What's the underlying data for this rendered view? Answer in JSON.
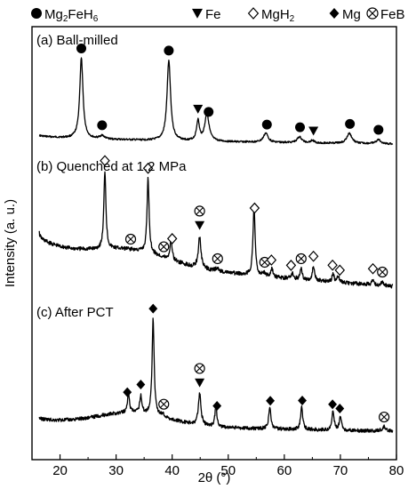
{
  "chart_data": {
    "type": "line",
    "xlabel": "2θ (°)",
    "ylabel": "Intensity (a. u.)",
    "xlim": [
      15,
      80
    ],
    "xticks": [
      20,
      30,
      40,
      50,
      60,
      70,
      80
    ],
    "legend_placement": "top",
    "legend": [
      {
        "symbol": "circle-filled",
        "label": "Mg",
        "sub1": "2",
        "mid": "FeH",
        "sub2": "6"
      },
      {
        "symbol": "triangle-down-filled",
        "label": "Fe"
      },
      {
        "symbol": "diamond-open",
        "label": "MgH",
        "sub1": "2"
      },
      {
        "symbol": "diamond-filled",
        "label": "Mg"
      },
      {
        "symbol": "circle-cross",
        "label": "FeB"
      }
    ],
    "series": [
      {
        "name": "(a) Ball-milled",
        "peaks": [
          {
            "x": 23.8,
            "h": 0.96,
            "w": 0.35
          },
          {
            "x": 27.5,
            "h": 0.04,
            "w": 0.5
          },
          {
            "x": 39.4,
            "h": 0.96,
            "w": 0.38
          },
          {
            "x": 44.6,
            "h": 0.24,
            "w": 0.3
          },
          {
            "x": 46.2,
            "h": 0.33,
            "w": 0.45
          },
          {
            "x": 56.7,
            "h": 0.11,
            "w": 0.5
          },
          {
            "x": 62.7,
            "h": 0.07,
            "w": 0.5
          },
          {
            "x": 65.0,
            "h": 0.03,
            "w": 0.4
          },
          {
            "x": 71.6,
            "h": 0.12,
            "w": 0.55
          },
          {
            "x": 76.8,
            "h": 0.05,
            "w": 0.5
          }
        ],
        "markers": [
          {
            "x": 23.8,
            "sym": "circle-filled"
          },
          {
            "x": 27.5,
            "sym": "circle-filled"
          },
          {
            "x": 39.4,
            "sym": "circle-filled"
          },
          {
            "x": 44.6,
            "sym": "triangle-down-filled"
          },
          {
            "x": 46.5,
            "sym": "circle-filled"
          },
          {
            "x": 56.9,
            "sym": "circle-filled"
          },
          {
            "x": 62.8,
            "sym": "circle-filled"
          },
          {
            "x": 65.2,
            "sym": "triangle-down-filled"
          },
          {
            "x": 71.7,
            "sym": "circle-filled"
          },
          {
            "x": 76.8,
            "sym": "circle-filled"
          }
        ]
      },
      {
        "name": "(b) Quenched at 1.2 MPa",
        "peaks": [
          {
            "x": 28.0,
            "h": 0.88,
            "w": 0.22
          },
          {
            "x": 35.7,
            "h": 0.84,
            "w": 0.22
          },
          {
            "x": 39.8,
            "h": 0.24,
            "w": 0.22
          },
          {
            "x": 44.9,
            "h": 0.36,
            "w": 0.28
          },
          {
            "x": 48.0,
            "h": 0.03,
            "w": 0.4
          },
          {
            "x": 54.6,
            "h": 0.78,
            "w": 0.22
          },
          {
            "x": 56.4,
            "h": 0.04,
            "w": 0.3
          },
          {
            "x": 57.8,
            "h": 0.09,
            "w": 0.22
          },
          {
            "x": 61.4,
            "h": 0.06,
            "w": 0.25
          },
          {
            "x": 63.0,
            "h": 0.12,
            "w": 0.22
          },
          {
            "x": 65.2,
            "h": 0.16,
            "w": 0.22
          },
          {
            "x": 68.7,
            "h": 0.09,
            "w": 0.22
          },
          {
            "x": 69.6,
            "h": 0.07,
            "w": 0.22
          },
          {
            "x": 75.8,
            "h": 0.07,
            "w": 0.22
          },
          {
            "x": 77.5,
            "h": 0.04,
            "w": 0.3
          }
        ],
        "markers": [
          {
            "x": 28.0,
            "sym": "diamond-open"
          },
          {
            "x": 32.6,
            "sym": "circle-cross"
          },
          {
            "x": 35.7,
            "sym": "diamond-open"
          },
          {
            "x": 38.5,
            "sym": "circle-cross"
          },
          {
            "x": 40.0,
            "sym": "diamond-open"
          },
          {
            "x": 44.9,
            "sym": "circle-cross"
          },
          {
            "x": 44.9,
            "sym": "triangle-down-filled"
          },
          {
            "x": 48.1,
            "sym": "circle-cross"
          },
          {
            "x": 54.7,
            "sym": "diamond-open"
          },
          {
            "x": 56.5,
            "sym": "circle-cross"
          },
          {
            "x": 57.7,
            "sym": "diamond-open"
          },
          {
            "x": 61.2,
            "sym": "diamond-open"
          },
          {
            "x": 63.0,
            "sym": "circle-cross"
          },
          {
            "x": 65.2,
            "sym": "diamond-open"
          },
          {
            "x": 68.6,
            "sym": "diamond-open"
          },
          {
            "x": 69.9,
            "sym": "diamond-open"
          },
          {
            "x": 75.8,
            "sym": "diamond-open"
          },
          {
            "x": 77.5,
            "sym": "circle-cross"
          }
        ]
      },
      {
        "name": "(c) After PCT",
        "peaks": [
          {
            "x": 32.2,
            "h": 0.18,
            "w": 0.22
          },
          {
            "x": 34.4,
            "h": 0.17,
            "w": 0.22
          },
          {
            "x": 36.6,
            "h": 0.92,
            "w": 0.22
          },
          {
            "x": 38.3,
            "h": 0.03,
            "w": 0.3
          },
          {
            "x": 44.9,
            "h": 0.3,
            "w": 0.28
          },
          {
            "x": 47.8,
            "h": 0.19,
            "w": 0.22
          },
          {
            "x": 57.4,
            "h": 0.21,
            "w": 0.22
          },
          {
            "x": 63.1,
            "h": 0.22,
            "w": 0.22
          },
          {
            "x": 68.7,
            "h": 0.18,
            "w": 0.22
          },
          {
            "x": 70.0,
            "h": 0.13,
            "w": 0.22
          },
          {
            "x": 77.8,
            "h": 0.04,
            "w": 0.4
          }
        ],
        "markers": [
          {
            "x": 32.0,
            "sym": "diamond-filled"
          },
          {
            "x": 34.4,
            "sym": "diamond-filled"
          },
          {
            "x": 36.6,
            "sym": "diamond-filled"
          },
          {
            "x": 38.5,
            "sym": "circle-cross"
          },
          {
            "x": 44.9,
            "sym": "circle-cross"
          },
          {
            "x": 44.9,
            "sym": "triangle-down-filled"
          },
          {
            "x": 48.0,
            "sym": "diamond-filled"
          },
          {
            "x": 57.5,
            "sym": "diamond-filled"
          },
          {
            "x": 63.2,
            "sym": "diamond-filled"
          },
          {
            "x": 68.6,
            "sym": "diamond-filled"
          },
          {
            "x": 69.9,
            "sym": "diamond-filled"
          },
          {
            "x": 77.8,
            "sym": "circle-cross"
          }
        ]
      }
    ]
  }
}
